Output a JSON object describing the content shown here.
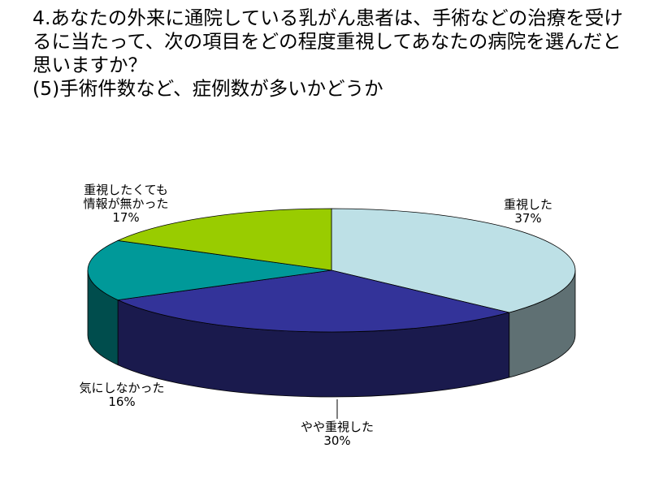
{
  "chart_data": {
    "type": "pie3d",
    "title": "4.あなたの外来に通院している乳がん患者は、手術などの治療を受けるに当たって、次の項目をどの程度重視してあなたの病院を選んだと思いますか？\n(5)手術件数など、症例数が多いかどうか",
    "categories": [
      "重視した",
      "やや重視した",
      "気にしなかった",
      "重視したくても\n情報が無かった"
    ],
    "values": [
      37,
      30,
      16,
      17
    ],
    "value_labels": [
      "37%",
      "30%",
      "16%",
      "17%"
    ],
    "colors": [
      "#bde0e6",
      "#333399",
      "#009999",
      "#99cc00"
    ]
  }
}
